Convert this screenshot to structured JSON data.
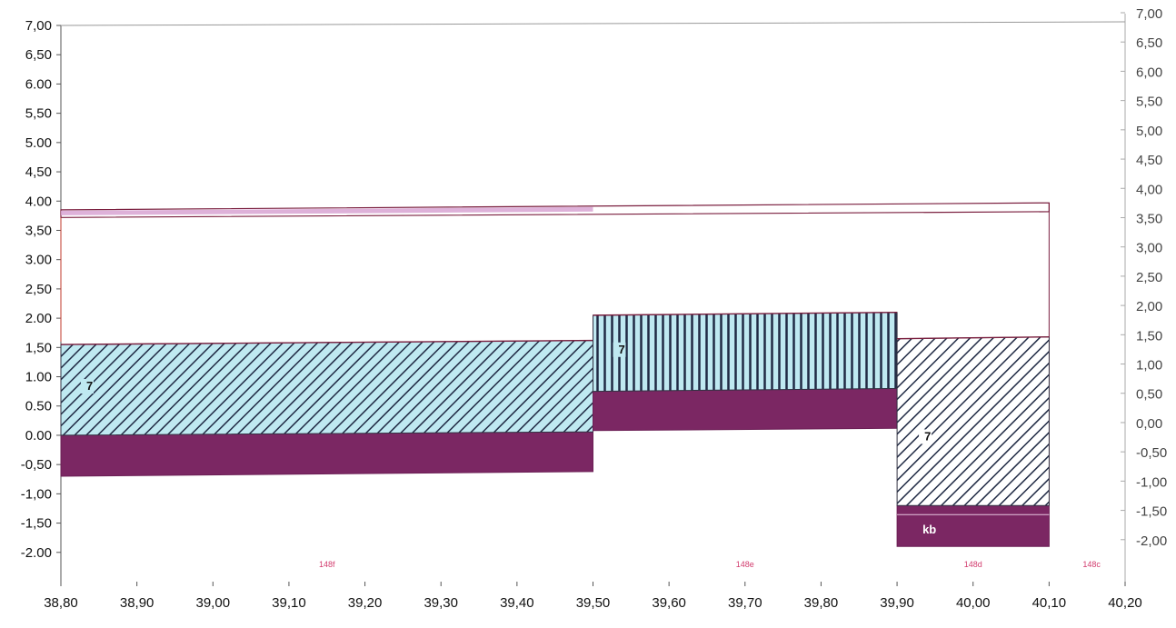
{
  "colors": {
    "background": "#ffffff",
    "axis": "#555555",
    "topline": "#7a1e3e",
    "cyan_fill": "#bfe9f1",
    "hatch": "#202a44",
    "purple": "#7b2763",
    "purple_dark": "#6b1f55",
    "pink_band": "#d8a3d2",
    "section_label": "#d23c6e"
  },
  "chart_data": {
    "type": "bar",
    "xlim": [
      38.8,
      40.2
    ],
    "ylim": [
      -2.5,
      7.0
    ],
    "x_ticks": [
      "38,80",
      "38,90",
      "39,00",
      "39,10",
      "39,20",
      "39,30",
      "39,40",
      "39,50",
      "39,60",
      "39,70",
      "39,80",
      "39,90",
      "40,00",
      "40,10",
      "40,20"
    ],
    "x_tick_values": [
      38.8,
      38.9,
      39.0,
      39.1,
      39.2,
      39.3,
      39.4,
      39.5,
      39.6,
      39.7,
      39.8,
      39.9,
      40.0,
      40.1,
      40.2
    ],
    "y_ticks_left": [
      "7,00",
      "6,50",
      "6.00",
      "5,50",
      "5.00",
      "4,50",
      "4.00",
      "3,50",
      "3.00",
      "2,50",
      "2.00",
      "1,50",
      "1.00",
      "0.50",
      "0.00",
      "-0,50",
      "-1,00",
      "-1,50",
      "-2.00"
    ],
    "y_ticks_right": [
      "7,00",
      "6,50",
      "6,00",
      "5,50",
      "5,00",
      "4,50",
      "4,00",
      "3,50",
      "3,00",
      "2,50",
      "2,00",
      "1,50",
      "1,00",
      "0,50",
      "0,00",
      "-0,50",
      "-1,00",
      "-1,50",
      "-2,00"
    ],
    "y_tick_values": [
      7.0,
      6.5,
      6.0,
      5.5,
      5.0,
      4.5,
      4.0,
      3.5,
      3.0,
      2.5,
      2.0,
      1.5,
      1.0,
      0.5,
      0.0,
      -0.5,
      -1.0,
      -1.5,
      -2.0
    ],
    "surface": {
      "x": [
        38.8,
        40.1
      ],
      "top": [
        3.85,
        3.97
      ],
      "bottom": [
        3.72,
        3.82
      ]
    },
    "sections": [
      {
        "x0": 38.8,
        "x1": 39.5,
        "hatch_top": [
          1.55,
          1.62
        ],
        "hatch_bottom": [
          0.0,
          0.06
        ],
        "purple_bottom": [
          -0.7,
          -0.62
        ],
        "hatch": "diagonal",
        "fill": "cyan",
        "label": "7",
        "name": "148f"
      },
      {
        "x0": 39.5,
        "x1": 39.9,
        "hatch_top": [
          2.05,
          2.1
        ],
        "hatch_bottom": [
          0.75,
          0.8
        ],
        "purple_bottom": [
          0.08,
          0.12
        ],
        "hatch": "vertical",
        "fill": "cyan",
        "label": "7",
        "name": "148e"
      },
      {
        "x0": 39.9,
        "x1": 40.1,
        "hatch_top": [
          1.65,
          1.68
        ],
        "hatch_bottom": [
          -1.2,
          -1.2
        ],
        "purple_bottom": [
          -1.9,
          -1.9
        ],
        "hatch": "diagonal",
        "fill": "white",
        "label": "7",
        "purple_label": "kb",
        "name": "148d"
      }
    ],
    "extra_labels": [
      {
        "x": 40.15,
        "text": "148c"
      }
    ],
    "title": "",
    "xlabel": "",
    "ylabel": ""
  }
}
